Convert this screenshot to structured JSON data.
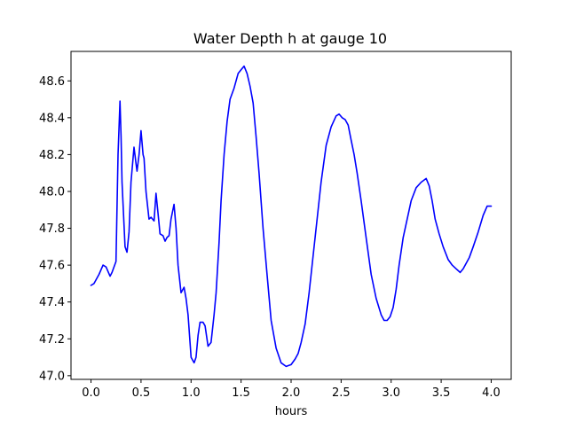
{
  "chart_data": {
    "type": "line",
    "title": "Water Depth h at gauge 10",
    "xlabel": "hours",
    "ylabel": "",
    "xlim": [
      -0.2,
      4.2
    ],
    "ylim": [
      46.98,
      48.76
    ],
    "xticks": [
      0.0,
      0.5,
      1.0,
      1.5,
      2.0,
      2.5,
      3.0,
      3.5,
      4.0
    ],
    "xtick_labels": [
      "0.0",
      "0.5",
      "1.0",
      "1.5",
      "2.0",
      "2.5",
      "3.0",
      "3.5",
      "4.0"
    ],
    "yticks": [
      47.0,
      47.2,
      47.4,
      47.6,
      47.8,
      48.0,
      48.2,
      48.4,
      48.6
    ],
    "ytick_labels": [
      "47.0",
      "47.2",
      "47.4",
      "47.6",
      "47.8",
      "48.0",
      "48.2",
      "48.4",
      "48.6"
    ],
    "grid": false,
    "series": [
      {
        "color": "#0000ff",
        "x": [
          0.0,
          0.03,
          0.08,
          0.12,
          0.15,
          0.19,
          0.21,
          0.25,
          0.27,
          0.29,
          0.3,
          0.31,
          0.34,
          0.36,
          0.38,
          0.4,
          0.43,
          0.45,
          0.46,
          0.48,
          0.5,
          0.52,
          0.53,
          0.55,
          0.58,
          0.6,
          0.63,
          0.65,
          0.67,
          0.69,
          0.72,
          0.74,
          0.76,
          0.78,
          0.8,
          0.83,
          0.85,
          0.87,
          0.9,
          0.93,
          0.95,
          0.97,
          1.0,
          1.03,
          1.05,
          1.07,
          1.09,
          1.12,
          1.14,
          1.17,
          1.2,
          1.23,
          1.25,
          1.28,
          1.3,
          1.33,
          1.36,
          1.39,
          1.43,
          1.47,
          1.5,
          1.53,
          1.56,
          1.59,
          1.62,
          1.65,
          1.68,
          1.72,
          1.76,
          1.8,
          1.85,
          1.9,
          1.95,
          2.0,
          2.04,
          2.07,
          2.1,
          2.14,
          2.18,
          2.22,
          2.26,
          2.3,
          2.35,
          2.4,
          2.45,
          2.48,
          2.51,
          2.54,
          2.57,
          2.6,
          2.63,
          2.66,
          2.7,
          2.75,
          2.8,
          2.85,
          2.9,
          2.93,
          2.96,
          2.99,
          3.02,
          3.05,
          3.08,
          3.12,
          3.16,
          3.2,
          3.25,
          3.3,
          3.35,
          3.38,
          3.41,
          3.44,
          3.48,
          3.52,
          3.57,
          3.61,
          3.65,
          3.69,
          3.72,
          3.75,
          3.78,
          3.82,
          3.87,
          3.92,
          3.96,
          4.0
        ],
        "y": [
          47.49,
          47.5,
          47.55,
          47.6,
          47.59,
          47.54,
          47.56,
          47.62,
          48.2,
          48.49,
          48.3,
          48.05,
          47.7,
          47.67,
          47.78,
          48.05,
          48.24,
          48.15,
          48.11,
          48.2,
          48.33,
          48.2,
          48.18,
          48.0,
          47.85,
          47.86,
          47.84,
          47.99,
          47.88,
          47.77,
          47.76,
          47.73,
          47.75,
          47.76,
          47.85,
          47.93,
          47.8,
          47.6,
          47.45,
          47.48,
          47.42,
          47.33,
          47.1,
          47.07,
          47.1,
          47.22,
          47.29,
          47.29,
          47.27,
          47.16,
          47.18,
          47.33,
          47.45,
          47.72,
          47.95,
          48.2,
          48.38,
          48.5,
          48.56,
          48.64,
          48.66,
          48.68,
          48.64,
          48.57,
          48.48,
          48.3,
          48.1,
          47.8,
          47.55,
          47.3,
          47.15,
          47.07,
          47.05,
          47.06,
          47.09,
          47.12,
          47.18,
          47.28,
          47.45,
          47.65,
          47.85,
          48.05,
          48.25,
          48.35,
          48.41,
          48.42,
          48.4,
          48.39,
          48.36,
          48.28,
          48.2,
          48.1,
          47.95,
          47.75,
          47.55,
          47.42,
          47.33,
          47.3,
          47.3,
          47.32,
          47.37,
          47.47,
          47.6,
          47.75,
          47.85,
          47.95,
          48.02,
          48.05,
          48.07,
          48.03,
          47.95,
          47.85,
          47.77,
          47.7,
          47.63,
          47.6,
          47.58,
          47.56,
          47.58,
          47.61,
          47.64,
          47.7,
          47.78,
          47.87,
          47.92,
          47.92
        ]
      }
    ]
  }
}
